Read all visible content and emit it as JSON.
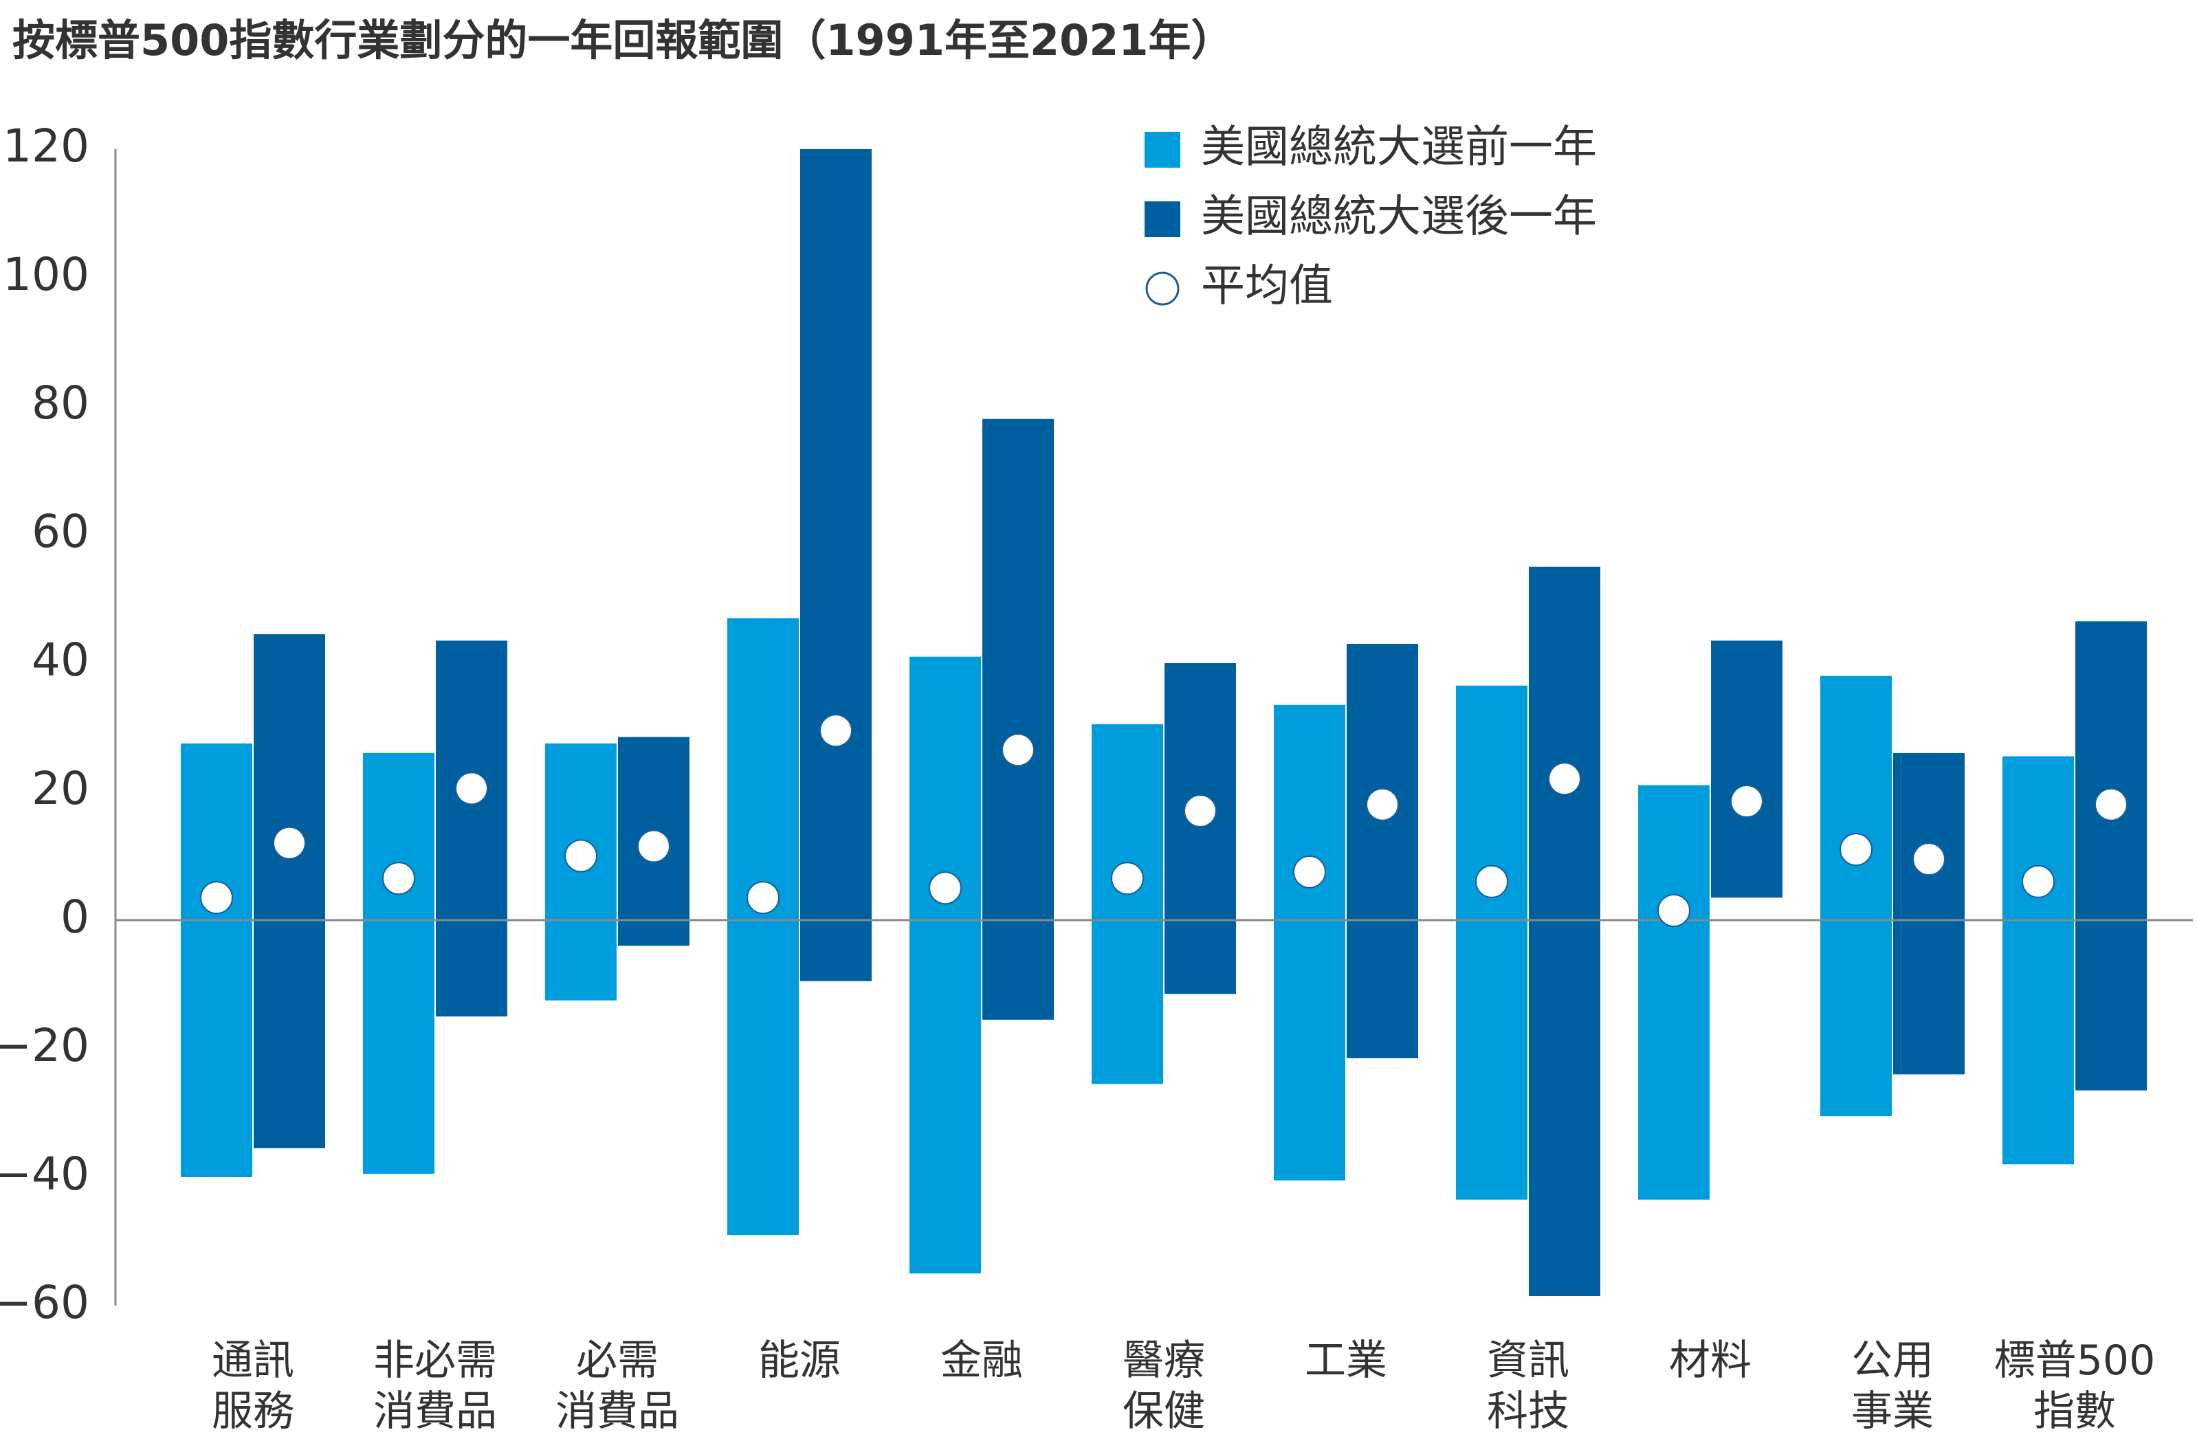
{
  "title": "按標普500指數行業劃分的一年回報範圍（1991年至2021年）",
  "colors": {
    "before": "#009ddd",
    "after": "#005f9e",
    "axis": "#888888",
    "marker_fill": "#ffffff",
    "marker_stroke": "#1a5f99"
  },
  "chart_data": {
    "type": "floating-bar",
    "title": "按標普500指數行業劃分的一年回報範圍（1991年至2021年）",
    "ylim": [
      -60,
      120
    ],
    "yticks": [
      -60,
      -40,
      -20,
      0,
      20,
      40,
      60,
      80,
      100,
      120
    ],
    "ytick_labels": [
      "−60",
      "−40",
      "−20",
      "0",
      "20",
      "40",
      "60",
      "80",
      "100",
      "120"
    ],
    "grid": false,
    "legend_position": "top-right",
    "legend": [
      {
        "key": "before",
        "label": "美國總統大選前一年",
        "marker": "square"
      },
      {
        "key": "after",
        "label": "美國總統大選後一年",
        "marker": "square"
      },
      {
        "key": "average",
        "label": "平均值",
        "marker": "circle"
      }
    ],
    "categories": [
      [
        "通訊",
        "服務"
      ],
      [
        "非必需",
        "消費品"
      ],
      [
        "必需",
        "消費品"
      ],
      [
        "能源"
      ],
      [
        "金融"
      ],
      [
        "醫療",
        "保健"
      ],
      [
        "工業"
      ],
      [
        "資訊",
        "科技"
      ],
      [
        "材料"
      ],
      [
        "公用",
        "事業"
      ],
      [
        "標普500",
        "指數"
      ]
    ],
    "series": [
      {
        "key": "before",
        "name": "美國總統大選前一年",
        "low": [
          -40,
          -39.5,
          -12.5,
          -49,
          -55,
          -25.5,
          -40.5,
          -43.5,
          -43.5,
          -30.5,
          -38
        ],
        "high": [
          27.5,
          26,
          27.5,
          47,
          41,
          30.5,
          33.5,
          36.5,
          21,
          38,
          25.5
        ],
        "average": [
          3.5,
          6.5,
          10,
          3.5,
          5,
          6.5,
          7.5,
          6,
          1.5,
          11,
          6
        ]
      },
      {
        "key": "after",
        "name": "美國總統大選後一年",
        "low": [
          -35.5,
          -15,
          -4,
          -9.5,
          -15.5,
          -11.5,
          -21.5,
          -58.5,
          3.5,
          -24,
          -26.5
        ],
        "high": [
          44.5,
          43.5,
          28.5,
          120,
          78,
          40,
          43,
          55,
          43.5,
          26,
          46.5
        ],
        "average": [
          12,
          20.5,
          11.5,
          29.5,
          26.5,
          17,
          18,
          22,
          18.5,
          9.5,
          18
        ]
      }
    ]
  }
}
